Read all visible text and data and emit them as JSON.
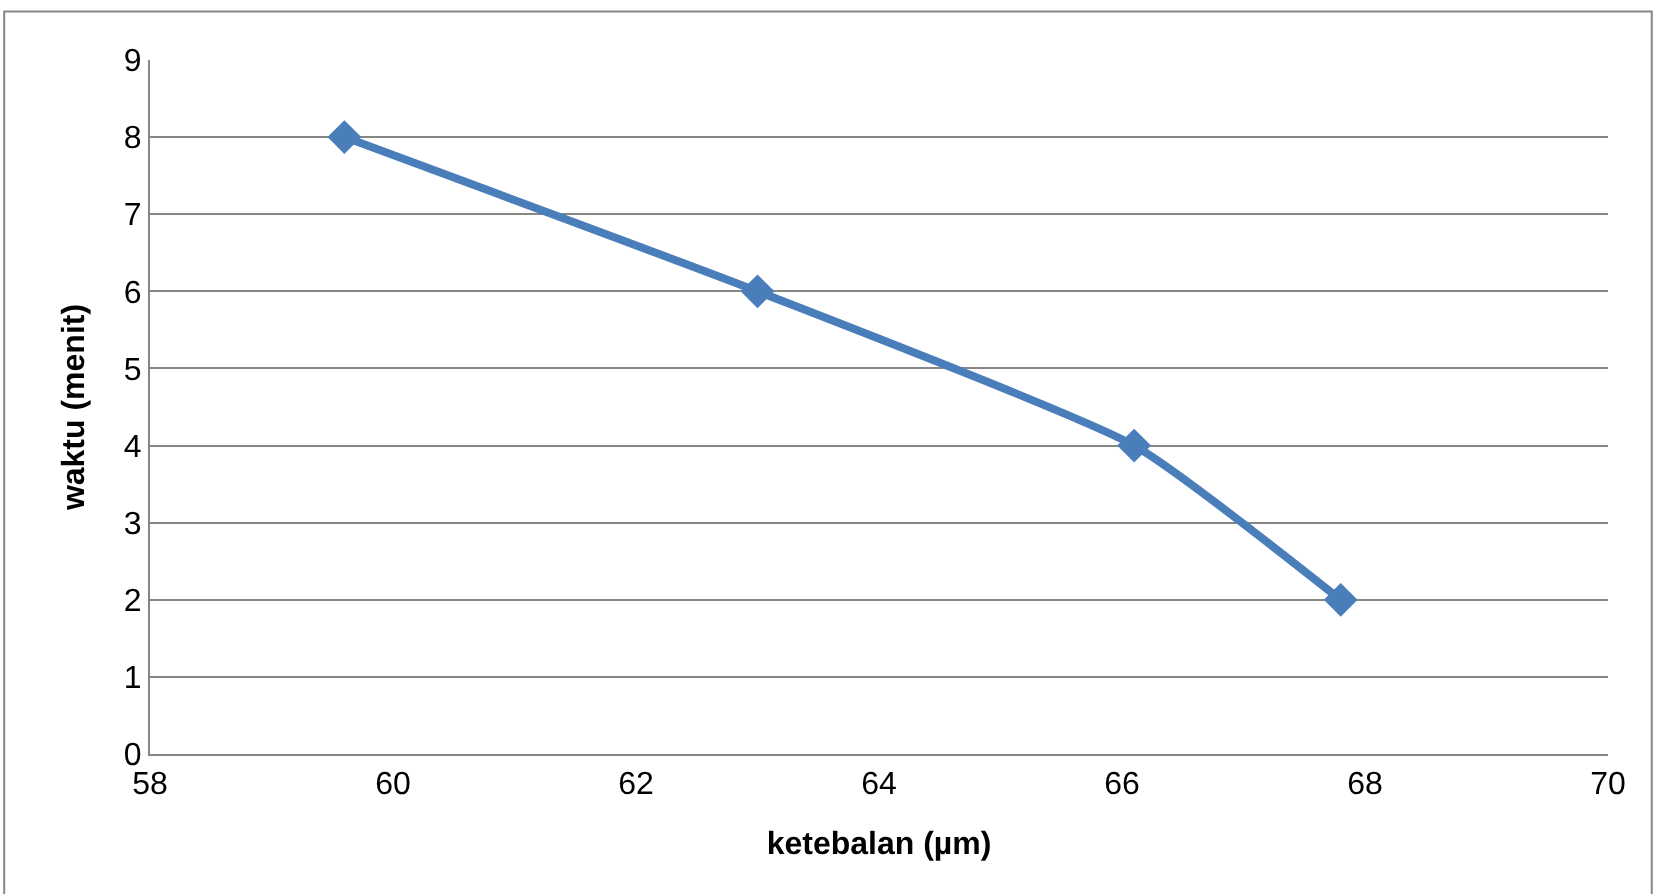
{
  "chart_data": {
    "type": "line",
    "xlabel": "ketebalan (µm)",
    "ylabel": "waktu (menit)",
    "x": [
      59.6,
      63.0,
      66.1,
      67.8
    ],
    "series": [
      {
        "color": "#4a7ebb",
        "values": [
          8,
          6,
          4,
          2
        ]
      }
    ],
    "xlim": [
      58,
      70
    ],
    "xticks": [
      58,
      60,
      62,
      64,
      66,
      68,
      70
    ],
    "ylim": [
      0,
      9
    ],
    "yticks": [
      0,
      1,
      2,
      3,
      4,
      5,
      6,
      7,
      8,
      9
    ],
    "grid": "y",
    "marker": "diamond",
    "line_style": "solid",
    "legend": false
  }
}
